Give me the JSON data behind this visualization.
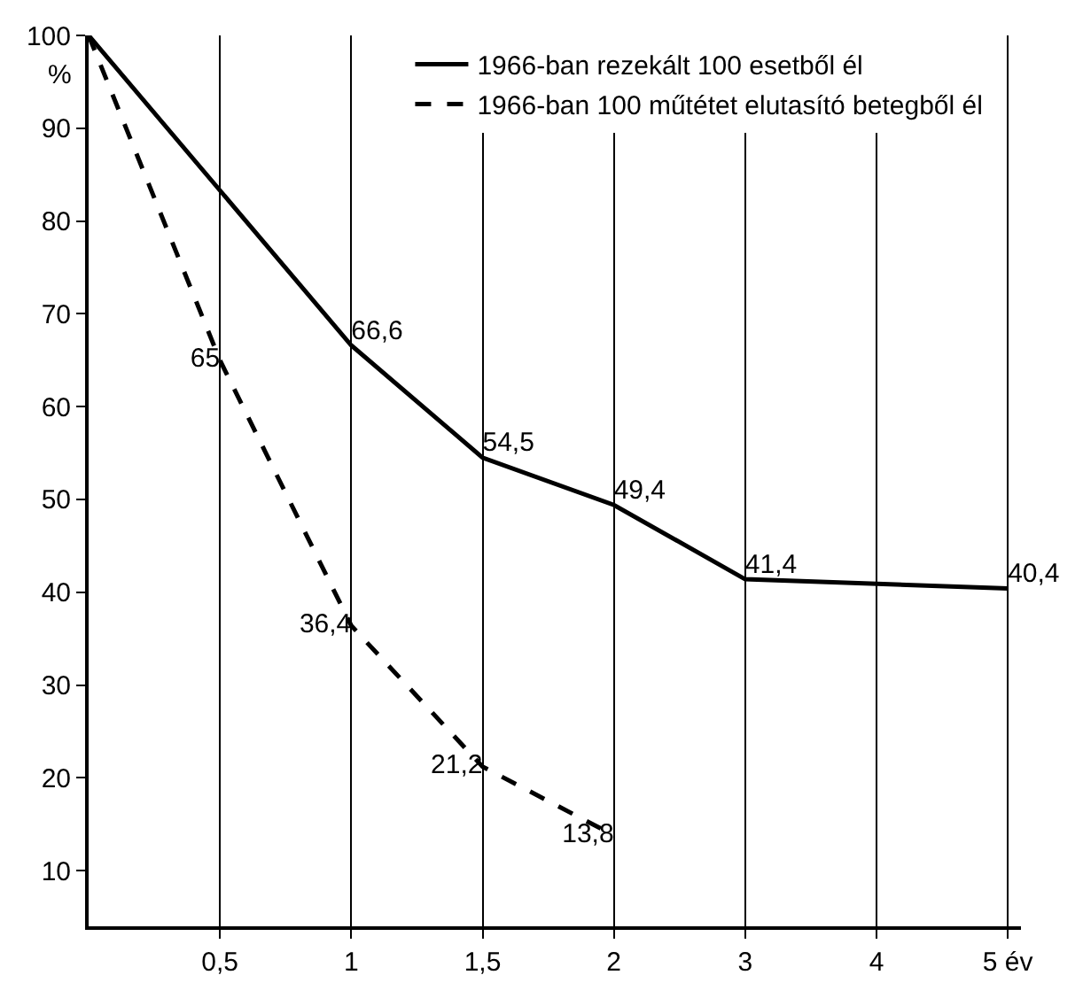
{
  "chart_data": {
    "type": "line",
    "categories": [
      null,
      "0,5",
      "1",
      "1,5",
      "2",
      "3",
      "4",
      "5 év"
    ],
    "ylabel": "%",
    "ylim": [
      4,
      100
    ],
    "yticks": [
      10,
      20,
      30,
      40,
      50,
      60,
      70,
      80,
      90,
      100
    ],
    "grid": "x",
    "legend": "top right",
    "marker": "none",
    "series": [
      {
        "name": "1966-ban rezekált 100 esetből él",
        "color": "#000000",
        "line_style": "solid",
        "values": [
          100,
          null,
          66.6,
          54.5,
          49.4,
          41.4,
          null,
          40.4
        ],
        "value_labels": [
          null,
          null,
          "66,6",
          "54,5",
          "49,4",
          "41,4",
          null,
          "40,4"
        ]
      },
      {
        "name": "1966-ban 100 műtétet elutasító betegből él",
        "color": "#000000",
        "line_style": "dashed",
        "values": [
          100,
          65,
          36.4,
          21.2,
          13.8,
          null,
          null,
          null
        ],
        "value_labels": [
          null,
          "65",
          "36,4",
          "21,2",
          "13,8",
          null,
          null,
          null
        ]
      }
    ]
  }
}
